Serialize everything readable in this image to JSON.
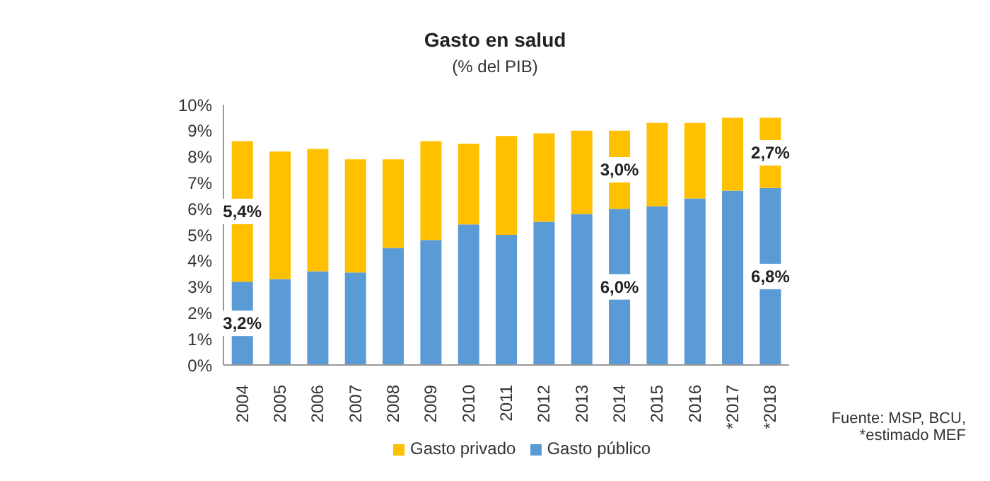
{
  "chart_data": {
    "type": "bar",
    "title": "Gasto en salud",
    "subtitle": "(% del PIB)",
    "stacked": true,
    "categories": [
      "2004",
      "2005",
      "2006",
      "2007",
      "2008",
      "2009",
      "2010",
      "2011",
      "2012",
      "2013",
      "2014",
      "2015",
      "2016",
      "*2017",
      "*2018"
    ],
    "series": [
      {
        "name": "Gasto público",
        "color": "#5b9bd5",
        "values": [
          3.2,
          3.3,
          3.6,
          3.55,
          4.5,
          4.8,
          5.4,
          5.0,
          5.5,
          5.8,
          6.0,
          6.1,
          6.4,
          6.7,
          6.8
        ],
        "value_labels": [
          "3,2%",
          null,
          null,
          null,
          null,
          null,
          null,
          null,
          null,
          null,
          "6,0%",
          null,
          null,
          null,
          "6,8%"
        ]
      },
      {
        "name": "Gasto privado",
        "color": "#ffc000",
        "values": [
          5.4,
          4.9,
          4.7,
          4.35,
          3.4,
          3.8,
          3.1,
          3.8,
          3.4,
          3.2,
          3.0,
          3.2,
          2.9,
          2.8,
          2.7
        ],
        "value_labels": [
          "5,4%",
          null,
          null,
          null,
          null,
          null,
          null,
          null,
          null,
          null,
          "3,0%",
          null,
          null,
          null,
          "2,7%"
        ]
      }
    ],
    "ylim": [
      0,
      10
    ],
    "yticks": [
      {
        "value": 0,
        "label": "0%"
      },
      {
        "value": 1,
        "label": "1%"
      },
      {
        "value": 2,
        "label": "2%"
      },
      {
        "value": 3,
        "label": "3%"
      },
      {
        "value": 4,
        "label": "4%"
      },
      {
        "value": 5,
        "label": "5%"
      },
      {
        "value": 6,
        "label": "6%"
      },
      {
        "value": 7,
        "label": "7%"
      },
      {
        "value": 8,
        "label": "8%"
      },
      {
        "value": 9,
        "label": "9%"
      },
      {
        "value": 10,
        "label": "10%"
      }
    ],
    "grid": false,
    "legend": "bottom",
    "annotations": [
      "Fuente: MSP, BCU,\n*estimado MEF"
    ]
  }
}
